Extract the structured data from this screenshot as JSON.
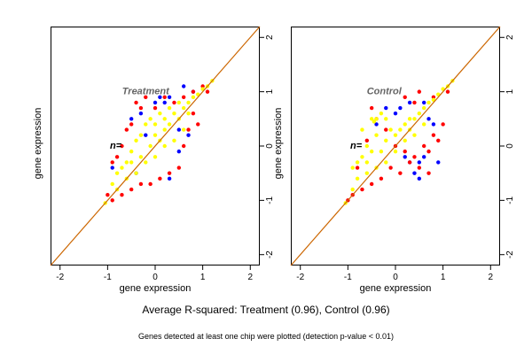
{
  "chart_data": [
    {
      "type": "scatter",
      "title": "Treatment",
      "annotation": "n=",
      "xlabel": "gene expression",
      "ylabel": "gene expression",
      "xlim": [
        -2.2,
        2.2
      ],
      "ylim": [
        -2.2,
        2.2
      ],
      "x_ticks": [
        -2,
        -1,
        0,
        1,
        2
      ],
      "y_ticks": [
        -2,
        -1,
        0,
        1,
        2
      ],
      "grid": false,
      "reference_line": {
        "slope": 1,
        "intercept": 0,
        "color": "#cc6600"
      },
      "series": [
        {
          "color": "#0000ff",
          "points": [
            [
              -0.9,
              -0.4
            ],
            [
              -0.5,
              0.5
            ],
            [
              -0.3,
              0.6
            ],
            [
              0.0,
              0.8
            ],
            [
              0.3,
              0.9
            ],
            [
              0.6,
              1.1
            ],
            [
              0.5,
              0.3
            ],
            [
              0.3,
              -0.6
            ],
            [
              0.7,
              0.2
            ],
            [
              -0.2,
              0.2
            ],
            [
              0.2,
              0.8
            ],
            [
              -0.4,
              -0.5
            ],
            [
              0.8,
              1.0
            ],
            [
              0.1,
              0.9
            ],
            [
              0.5,
              -0.1
            ]
          ]
        },
        {
          "color": "#ff0000",
          "points": [
            [
              -1.0,
              -0.9
            ],
            [
              -0.9,
              -0.3
            ],
            [
              -0.8,
              -0.2
            ],
            [
              -0.7,
              0.0
            ],
            [
              -0.6,
              0.3
            ],
            [
              -0.5,
              0.4
            ],
            [
              -0.4,
              0.8
            ],
            [
              -0.3,
              0.7
            ],
            [
              -0.2,
              0.9
            ],
            [
              0.0,
              0.7
            ],
            [
              0.2,
              0.9
            ],
            [
              0.4,
              0.8
            ],
            [
              0.6,
              0.9
            ],
            [
              0.8,
              1.0
            ],
            [
              1.0,
              1.1
            ],
            [
              1.1,
              1.0
            ],
            [
              0.9,
              0.4
            ],
            [
              0.7,
              0.3
            ],
            [
              0.5,
              -0.4
            ],
            [
              0.3,
              -0.5
            ],
            [
              0.1,
              -0.6
            ],
            [
              -0.1,
              -0.7
            ],
            [
              -0.3,
              -0.7
            ],
            [
              -0.5,
              -0.8
            ],
            [
              -0.7,
              -0.9
            ],
            [
              -0.9,
              -1.0
            ],
            [
              0.6,
              0.0
            ],
            [
              0.8,
              0.6
            ]
          ]
        },
        {
          "color": "#ffff00",
          "points": [
            [
              -1.05,
              -1.05
            ],
            [
              -0.9,
              -0.7
            ],
            [
              -0.8,
              -0.5
            ],
            [
              -0.7,
              -0.4
            ],
            [
              -0.6,
              -0.3
            ],
            [
              -0.5,
              -0.1
            ],
            [
              -0.4,
              0.1
            ],
            [
              -0.3,
              0.2
            ],
            [
              -0.2,
              0.4
            ],
            [
              -0.1,
              0.5
            ],
            [
              0.0,
              0.4
            ],
            [
              0.1,
              0.6
            ],
            [
              0.2,
              0.5
            ],
            [
              0.3,
              0.7
            ],
            [
              0.4,
              0.6
            ],
            [
              0.5,
              0.8
            ],
            [
              0.6,
              0.7
            ],
            [
              0.7,
              0.8
            ],
            [
              0.8,
              0.9
            ],
            [
              0.9,
              0.95
            ],
            [
              1.0,
              1.05
            ],
            [
              1.1,
              1.1
            ],
            [
              1.2,
              1.2
            ],
            [
              0.6,
              0.3
            ],
            [
              0.4,
              0.1
            ],
            [
              0.2,
              0.0
            ],
            [
              0.0,
              -0.2
            ],
            [
              -0.2,
              -0.3
            ],
            [
              -0.4,
              -0.5
            ],
            [
              -0.6,
              -0.6
            ],
            [
              -0.8,
              -0.8
            ],
            [
              0.0,
              0.2
            ],
            [
              -0.1,
              0.0
            ],
            [
              0.1,
              0.1
            ],
            [
              0.3,
              0.4
            ],
            [
              0.5,
              0.5
            ],
            [
              0.7,
              0.6
            ],
            [
              -0.5,
              -0.3
            ],
            [
              -0.3,
              -0.2
            ],
            [
              0.2,
              0.3
            ]
          ]
        }
      ]
    },
    {
      "type": "scatter",
      "title": "Control",
      "annotation": "n=",
      "xlabel": "gene expression",
      "ylabel": "gene expression",
      "xlim": [
        -2.2,
        2.2
      ],
      "ylim": [
        -2.2,
        2.2
      ],
      "x_ticks": [
        -2,
        -1,
        0,
        1,
        2
      ],
      "y_ticks": [
        -2,
        -1,
        0,
        1,
        2
      ],
      "grid": false,
      "reference_line": {
        "slope": 1,
        "intercept": 0,
        "color": "#cc6600"
      },
      "series": [
        {
          "color": "#0000ff",
          "points": [
            [
              -0.4,
              0.4
            ],
            [
              -0.2,
              0.7
            ],
            [
              0.0,
              0.6
            ],
            [
              0.3,
              0.8
            ],
            [
              0.2,
              -0.2
            ],
            [
              0.4,
              -0.5
            ],
            [
              0.5,
              -0.3
            ],
            [
              0.6,
              -0.2
            ],
            [
              0.8,
              0.4
            ],
            [
              0.7,
              0.5
            ],
            [
              0.1,
              0.7
            ],
            [
              0.9,
              -0.3
            ],
            [
              0.5,
              -0.6
            ],
            [
              0.3,
              -0.3
            ],
            [
              0.6,
              0.8
            ]
          ]
        },
        {
          "color": "#ff0000",
          "points": [
            [
              -1.0,
              -1.0
            ],
            [
              -0.9,
              -0.9
            ],
            [
              -0.7,
              -0.8
            ],
            [
              -0.5,
              -0.7
            ],
            [
              -0.3,
              -0.6
            ],
            [
              -0.1,
              -0.4
            ],
            [
              0.1,
              -0.5
            ],
            [
              0.3,
              -0.3
            ],
            [
              0.5,
              -0.4
            ],
            [
              0.7,
              -0.1
            ],
            [
              0.9,
              0.1
            ],
            [
              1.0,
              0.4
            ],
            [
              0.8,
              0.2
            ],
            [
              0.6,
              0.0
            ],
            [
              0.4,
              -0.2
            ],
            [
              0.2,
              -0.1
            ],
            [
              0.0,
              0.0
            ],
            [
              -0.2,
              0.3
            ],
            [
              -0.4,
              0.5
            ],
            [
              -0.5,
              0.7
            ],
            [
              0.2,
              0.9
            ],
            [
              0.5,
              1.0
            ],
            [
              0.8,
              0.9
            ],
            [
              1.1,
              1.0
            ],
            [
              0.4,
              0.8
            ],
            [
              -0.6,
              0.1
            ],
            [
              -0.8,
              -0.4
            ],
            [
              0.7,
              -0.5
            ]
          ]
        },
        {
          "color": "#ffff00",
          "points": [
            [
              -1.05,
              -1.05
            ],
            [
              -0.9,
              -0.8
            ],
            [
              -0.8,
              -0.6
            ],
            [
              -0.8,
              -0.3
            ],
            [
              -0.7,
              -0.2
            ],
            [
              -0.6,
              -0.3
            ],
            [
              -0.6,
              0.0
            ],
            [
              -0.5,
              -0.1
            ],
            [
              -0.4,
              0.2
            ],
            [
              -0.3,
              -0.1
            ],
            [
              -0.2,
              0.1
            ],
            [
              -0.1,
              0.3
            ],
            [
              0.0,
              0.2
            ],
            [
              0.1,
              0.3
            ],
            [
              0.2,
              0.4
            ],
            [
              0.3,
              0.5
            ],
            [
              0.4,
              0.5
            ],
            [
              0.5,
              0.6
            ],
            [
              0.6,
              0.7
            ],
            [
              0.7,
              0.8
            ],
            [
              0.8,
              0.85
            ],
            [
              0.9,
              0.95
            ],
            [
              1.0,
              1.05
            ],
            [
              1.1,
              1.1
            ],
            [
              1.2,
              1.2
            ],
            [
              -0.5,
              0.5
            ],
            [
              -0.4,
              0.5
            ],
            [
              -0.3,
              0.6
            ],
            [
              -0.2,
              0.5
            ],
            [
              -0.45,
              0.45
            ],
            [
              -0.7,
              0.3
            ],
            [
              -0.9,
              -0.4
            ],
            [
              -0.2,
              -0.3
            ],
            [
              0.0,
              -0.1
            ],
            [
              0.2,
              0.1
            ],
            [
              0.4,
              0.2
            ],
            [
              0.6,
              0.4
            ],
            [
              -0.4,
              -0.4
            ],
            [
              -0.6,
              -0.5
            ],
            [
              0.3,
              0.3
            ]
          ]
        }
      ]
    }
  ],
  "caption": {
    "main": "Average R-squared: Treatment (0.96), Control (0.96)",
    "sub": "Genes detected at least one chip were plotted (detection p-value < 0.01)"
  }
}
